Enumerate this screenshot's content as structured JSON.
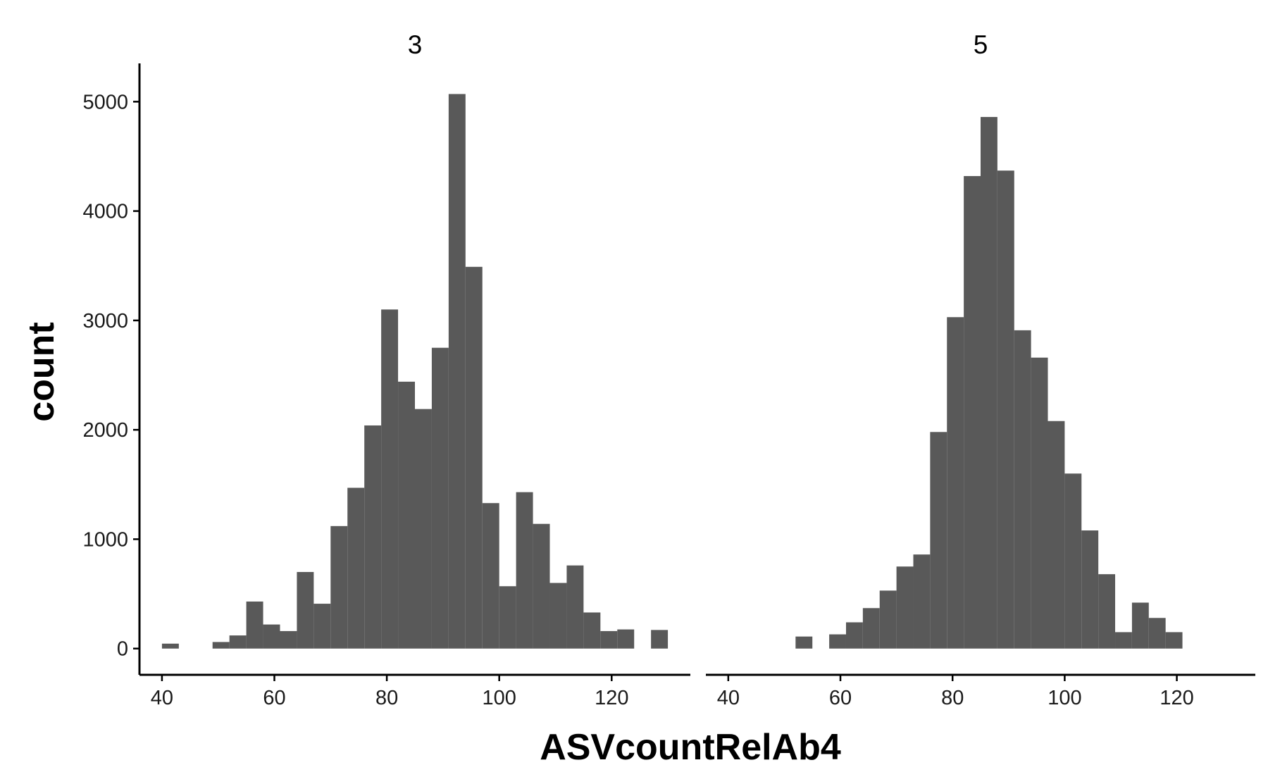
{
  "chart_data": {
    "type": "bar",
    "subtype": "histogram-faceted",
    "xlabel": "ASVcountRelAb4",
    "ylabel": "count",
    "xlim": [
      36,
      134
    ],
    "ylim": [
      -240,
      5350
    ],
    "xticks": [
      40,
      60,
      80,
      100,
      120
    ],
    "yticks": [
      0,
      1000,
      2000,
      3000,
      4000,
      5000
    ],
    "bin_width": 3,
    "grid": false,
    "bar_color": "#595959",
    "facets": [
      {
        "label": "3",
        "bins": [
          {
            "x": 41.5,
            "count": 45
          },
          {
            "x": 50.5,
            "count": 60
          },
          {
            "x": 53.5,
            "count": 120
          },
          {
            "x": 56.5,
            "count": 430
          },
          {
            "x": 59.5,
            "count": 220
          },
          {
            "x": 62.5,
            "count": 160
          },
          {
            "x": 65.5,
            "count": 700
          },
          {
            "x": 68.5,
            "count": 410
          },
          {
            "x": 71.5,
            "count": 1120
          },
          {
            "x": 74.5,
            "count": 1470
          },
          {
            "x": 77.5,
            "count": 2040
          },
          {
            "x": 80.5,
            "count": 3100
          },
          {
            "x": 83.5,
            "count": 2440
          },
          {
            "x": 86.5,
            "count": 2190
          },
          {
            "x": 89.5,
            "count": 2750
          },
          {
            "x": 92.5,
            "count": 5070
          },
          {
            "x": 95.5,
            "count": 3490
          },
          {
            "x": 98.5,
            "count": 1330
          },
          {
            "x": 101.5,
            "count": 570
          },
          {
            "x": 104.5,
            "count": 1430
          },
          {
            "x": 107.5,
            "count": 1140
          },
          {
            "x": 110.5,
            "count": 600
          },
          {
            "x": 113.5,
            "count": 760
          },
          {
            "x": 116.5,
            "count": 330
          },
          {
            "x": 119.5,
            "count": 160
          },
          {
            "x": 122.5,
            "count": 175
          },
          {
            "x": 128.5,
            "count": 170
          }
        ]
      },
      {
        "label": "5",
        "bins": [
          {
            "x": 53.5,
            "count": 110
          },
          {
            "x": 59.5,
            "count": 130
          },
          {
            "x": 62.5,
            "count": 240
          },
          {
            "x": 65.5,
            "count": 370
          },
          {
            "x": 68.5,
            "count": 530
          },
          {
            "x": 71.5,
            "count": 750
          },
          {
            "x": 74.5,
            "count": 860
          },
          {
            "x": 77.5,
            "count": 1980
          },
          {
            "x": 80.5,
            "count": 3030
          },
          {
            "x": 83.5,
            "count": 4320
          },
          {
            "x": 86.5,
            "count": 4860
          },
          {
            "x": 89.5,
            "count": 4370
          },
          {
            "x": 92.5,
            "count": 2910
          },
          {
            "x": 95.5,
            "count": 2660
          },
          {
            "x": 98.5,
            "count": 2080
          },
          {
            "x": 101.5,
            "count": 1600
          },
          {
            "x": 104.5,
            "count": 1080
          },
          {
            "x": 107.5,
            "count": 680
          },
          {
            "x": 110.5,
            "count": 150
          },
          {
            "x": 113.5,
            "count": 420
          },
          {
            "x": 116.5,
            "count": 280
          },
          {
            "x": 119.5,
            "count": 150
          }
        ]
      }
    ]
  }
}
